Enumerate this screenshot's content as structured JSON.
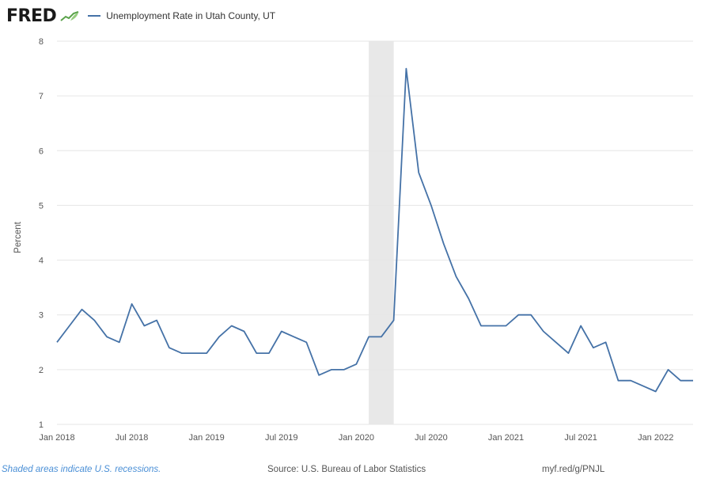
{
  "header": {
    "logo_text": "FRED",
    "logo_icon": "fred-chart-leaf-icon",
    "series_title": "Unemployment Rate in Utah County, UT"
  },
  "footer": {
    "recession_note": "Shaded areas indicate U.S. recessions.",
    "source": "Source: U.S. Bureau of Labor Statistics",
    "link": "myf.red/g/PNJL"
  },
  "colors": {
    "line": "#4572A7",
    "recession_shade": "#e8e8e8",
    "grid": "#e6e6e6",
    "logo_mark": "#5aa34a"
  },
  "chart_data": {
    "type": "line",
    "title": "Unemployment Rate in Utah County, UT",
    "xlabel": "",
    "ylabel": "Percent",
    "ylim": [
      1,
      8
    ],
    "y_ticks": [
      1,
      2,
      3,
      4,
      5,
      6,
      7,
      8
    ],
    "x_range": [
      "2018-01",
      "2022-04"
    ],
    "x_ticks": [
      {
        "date": "2018-01",
        "label": "Jan 2018"
      },
      {
        "date": "2018-07",
        "label": "Jul 2018"
      },
      {
        "date": "2019-01",
        "label": "Jan 2019"
      },
      {
        "date": "2019-07",
        "label": "Jul 2019"
      },
      {
        "date": "2020-01",
        "label": "Jan 2020"
      },
      {
        "date": "2020-07",
        "label": "Jul 2020"
      },
      {
        "date": "2021-01",
        "label": "Jan 2021"
      },
      {
        "date": "2021-07",
        "label": "Jul 2021"
      },
      {
        "date": "2022-01",
        "label": "Jan 2022"
      }
    ],
    "grid": true,
    "recessions": [
      {
        "start": "2020-02",
        "end": "2020-04"
      }
    ],
    "series": [
      {
        "name": "Unemployment Rate in Utah County, UT",
        "x": [
          "2018-01",
          "2018-02",
          "2018-03",
          "2018-04",
          "2018-05",
          "2018-06",
          "2018-07",
          "2018-08",
          "2018-09",
          "2018-10",
          "2018-11",
          "2018-12",
          "2019-01",
          "2019-02",
          "2019-03",
          "2019-04",
          "2019-05",
          "2019-06",
          "2019-07",
          "2019-08",
          "2019-09",
          "2019-10",
          "2019-11",
          "2019-12",
          "2020-01",
          "2020-02",
          "2020-03",
          "2020-04",
          "2020-05",
          "2020-06",
          "2020-07",
          "2020-08",
          "2020-09",
          "2020-10",
          "2020-11",
          "2020-12",
          "2021-01",
          "2021-02",
          "2021-03",
          "2021-04",
          "2021-05",
          "2021-06",
          "2021-07",
          "2021-08",
          "2021-09",
          "2021-10",
          "2021-11",
          "2021-12",
          "2022-01",
          "2022-02",
          "2022-03",
          "2022-04"
        ],
        "values": [
          2.5,
          2.8,
          3.1,
          2.9,
          2.6,
          2.5,
          3.2,
          2.8,
          2.9,
          2.4,
          2.3,
          2.3,
          2.3,
          2.6,
          2.8,
          2.7,
          2.3,
          2.3,
          2.7,
          2.6,
          2.5,
          1.9,
          2.0,
          2.0,
          2.1,
          2.6,
          2.6,
          2.9,
          7.5,
          5.6,
          5.0,
          4.3,
          3.7,
          3.3,
          2.8,
          2.8,
          2.8,
          3.0,
          3.0,
          2.7,
          2.5,
          2.3,
          2.8,
          2.4,
          2.5,
          1.8,
          1.8,
          1.7,
          1.6,
          2.0,
          1.8,
          1.8
        ]
      }
    ]
  }
}
